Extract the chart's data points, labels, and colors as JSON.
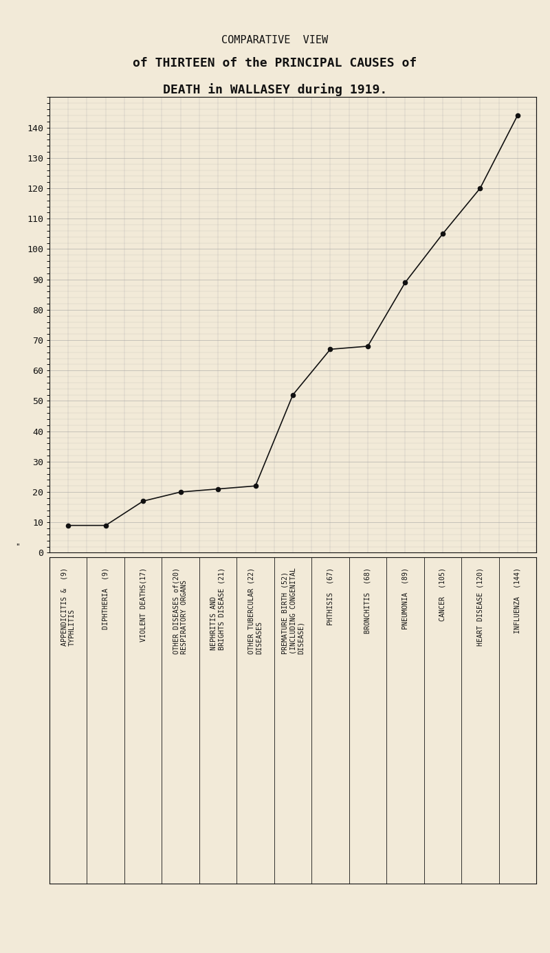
{
  "title_line1": "COMPARATIVE  VIEW",
  "title_line2": "of THIRTEEN of the PRINCIPAL CAUSES of",
  "title_line3": "DEATH in WALLASEY during 1919.",
  "counts": [
    9,
    9,
    17,
    20,
    21,
    22,
    52,
    67,
    68,
    89,
    105,
    120,
    144
  ],
  "label_texts": [
    "APPENDICITIS &\nTYPHLITIS\n(9)",
    "DIPHTHERIA\n(9)",
    "VIOLENT DEATHS(17)",
    "OTHER DISEASES of(20)\nRESPIRATORY ORGANS",
    "NEPHRITIS AND\nBRIGHTS DISEASE (21)",
    "OTHER TUBERCULAR (22)\nDISEASES",
    "PREMATURE BIRTH (52)\n(INCLUDING CONGENITAL\nDISEASE)",
    "PHTHISIS\n(67)",
    "BRONCHITIS\n(68)",
    "PNEUMONIA\n(89)",
    "CANCER\n(105)",
    "HEART DISEASE (120)",
    "INFLUENZA\n(144)"
  ],
  "yticks": [
    0,
    10,
    20,
    30,
    40,
    50,
    60,
    70,
    80,
    90,
    100,
    110,
    120,
    130,
    140
  ],
  "ylim": [
    0,
    150
  ],
  "background_color": "#f2ead8",
  "line_color": "#111111",
  "grid_color": "#999999",
  "marker_color": "#111111",
  "title1_fontsize": 11,
  "title2_fontsize": 13,
  "title3_fontsize": 13
}
